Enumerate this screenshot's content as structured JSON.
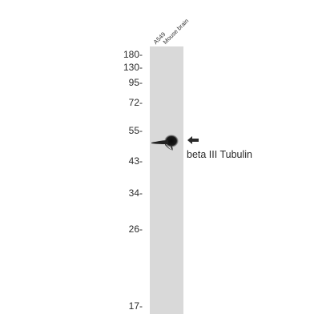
{
  "lanes": [
    "A549",
    "Mouse brain"
  ],
  "markers": [
    "180-",
    "130-",
    "95-",
    "72-",
    "55-",
    "43-",
    "34-",
    "26-",
    "17-"
  ],
  "target_label": "beta III Tubulin",
  "colors": {
    "background": "#ffffff",
    "lane": "#d9d9d9",
    "band": "#111111",
    "text": "#2a2a2a"
  }
}
